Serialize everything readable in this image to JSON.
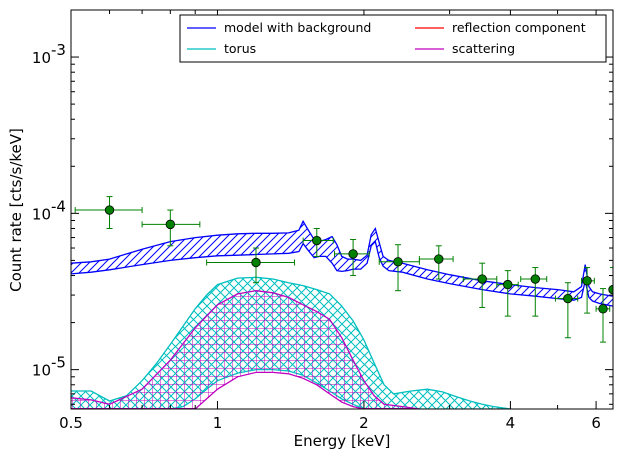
{
  "chart_data": {
    "type": "scatter",
    "xlabel": "Energy [keV]",
    "ylabel": "Count rate [cts/s/keV]",
    "xscale": "log",
    "yscale": "log",
    "xlim": [
      0.5,
      6.5
    ],
    "ylim": [
      5.6e-06,
      0.002
    ],
    "x_ticks": [
      {
        "value": 0.5,
        "label": "0.5"
      },
      {
        "value": 1,
        "label": "1"
      },
      {
        "value": 2,
        "label": "2"
      },
      {
        "value": 4,
        "label": "4"
      },
      {
        "value": 6,
        "label": "6"
      }
    ],
    "y_ticks": [
      {
        "value": 1e-05,
        "base": "10",
        "exp": "-5"
      },
      {
        "value": 0.0001,
        "base": "10",
        "exp": "-4"
      },
      {
        "value": 0.001,
        "base": "10",
        "exp": "-3"
      }
    ],
    "legend": {
      "placement": "top-right",
      "entries": [
        {
          "label": "model with background",
          "color": "#0000ff"
        },
        {
          "label": "reflection component",
          "color": "#ff0000"
        },
        {
          "label": "torus",
          "color": "#00bfbf"
        },
        {
          "label": "scattering",
          "color": "#bf00bf"
        }
      ]
    },
    "colors": {
      "model": "#0000ff",
      "reflection": "#ff0000",
      "torus": "#00bfbf",
      "scattering": "#bf00bf",
      "data": "#008000"
    },
    "data_points": [
      {
        "x": 0.6,
        "y": 0.000105,
        "xlo": 0.51,
        "xhi": 0.7,
        "ylo": 8e-05,
        "yhi": 0.000128
      },
      {
        "x": 0.8,
        "y": 8.5e-05,
        "xlo": 0.7,
        "xhi": 0.92,
        "ylo": 6.2e-05,
        "yhi": 0.000105
      },
      {
        "x": 1.2,
        "y": 4.85e-05,
        "xlo": 0.95,
        "xhi": 1.44,
        "ylo": 3.6e-05,
        "yhi": 6e-05
      },
      {
        "x": 1.6,
        "y": 6.7e-05,
        "xlo": 1.5,
        "xhi": 1.73,
        "ylo": 5.3e-05,
        "yhi": 8e-05
      },
      {
        "x": 1.9,
        "y": 5.5e-05,
        "xlo": 1.74,
        "xhi": 2.05,
        "ylo": 4e-05,
        "yhi": 6.8e-05
      },
      {
        "x": 2.35,
        "y": 4.9e-05,
        "xlo": 2.15,
        "xhi": 2.6,
        "ylo": 3.2e-05,
        "yhi": 6.3e-05
      },
      {
        "x": 2.85,
        "y": 5.1e-05,
        "xlo": 2.6,
        "xhi": 3.05,
        "ylo": 3.8e-05,
        "yhi": 6.2e-05
      },
      {
        "x": 3.5,
        "y": 3.8e-05,
        "xlo": 3.2,
        "xhi": 3.75,
        "ylo": 2.5e-05,
        "yhi": 4.8e-05
      },
      {
        "x": 3.95,
        "y": 3.5e-05,
        "xlo": 3.75,
        "xhi": 4.15,
        "ylo": 2.2e-05,
        "yhi": 4.3e-05
      },
      {
        "x": 4.5,
        "y": 3.8e-05,
        "xlo": 4.2,
        "xhi": 4.75,
        "ylo": 2.2e-05,
        "yhi": 4.5e-05
      },
      {
        "x": 5.25,
        "y": 2.85e-05,
        "xlo": 4.95,
        "xhi": 5.5,
        "ylo": 1.6e-05,
        "yhi": 3.6e-05
      },
      {
        "x": 5.75,
        "y": 3.7e-05,
        "xlo": 5.6,
        "xhi": 5.95,
        "ylo": 2.3e-05,
        "yhi": 4.5e-05
      },
      {
        "x": 6.2,
        "y": 2.45e-05,
        "xlo": 6.0,
        "xhi": 6.4,
        "ylo": 1.5e-05,
        "yhi": 3.3e-05
      },
      {
        "x": 6.5,
        "y": 3.25e-05,
        "xlo": 6.4,
        "xhi": 6.5,
        "ylo": 5.6e-06,
        "yhi": 4.5e-05
      }
    ],
    "series": [
      {
        "name": "model with background",
        "color": "#0000ff",
        "hatch": "diagonal",
        "x": [
          0.5,
          0.55,
          0.6,
          0.7,
          0.8,
          0.9,
          1.0,
          1.1,
          1.2,
          1.3,
          1.4,
          1.47,
          1.5,
          1.53,
          1.58,
          1.62,
          1.67,
          1.72,
          1.76,
          1.8,
          1.85,
          1.9,
          1.97,
          2.03,
          2.07,
          2.11,
          2.15,
          2.19,
          2.25,
          2.4,
          2.7,
          3.0,
          3.5,
          4.0,
          4.5,
          5.0,
          5.4,
          5.6,
          5.7,
          5.8,
          5.9,
          6.1,
          6.3,
          6.5
        ],
        "lower": [
          4.1e-05,
          4.2e-05,
          4.35e-05,
          4.7e-05,
          5e-05,
          5.2e-05,
          5.35e-05,
          5.4e-05,
          5.45e-05,
          5.5e-05,
          5.55e-05,
          5.7e-05,
          6.4e-05,
          5.9e-05,
          5.2e-05,
          5.3e-05,
          5.3e-05,
          4.8e-05,
          4.3e-05,
          4.25e-05,
          4.3e-05,
          4.4e-05,
          4.4e-05,
          4.8e-05,
          6.2e-05,
          6.6e-05,
          5.2e-05,
          4.6e-05,
          4.3e-05,
          4.2e-05,
          3.8e-05,
          3.55e-05,
          3.25e-05,
          3.05e-05,
          2.95e-05,
          2.85e-05,
          2.78e-05,
          2.9e-05,
          3.7e-05,
          2.9e-05,
          2.75e-05,
          2.65e-05,
          2.6e-05,
          2.55e-05
        ],
        "upper": [
          4.8e-05,
          4.9e-05,
          5.1e-05,
          5.9e-05,
          6.6e-05,
          7e-05,
          7.25e-05,
          7.4e-05,
          7.45e-05,
          7.45e-05,
          7.5e-05,
          7.8e-05,
          8.9e-05,
          8e-05,
          6.8e-05,
          6.6e-05,
          6.8e-05,
          7.1e-05,
          6.3e-05,
          5.3e-05,
          5.1e-05,
          5.1e-05,
          5e-05,
          5.4e-05,
          7.3e-05,
          8e-05,
          6.5e-05,
          5.3e-05,
          5e-05,
          4.8e-05,
          4.35e-05,
          4.05e-05,
          3.7e-05,
          3.5e-05,
          3.35e-05,
          3.25e-05,
          3.15e-05,
          3.4e-05,
          4.7e-05,
          3.4e-05,
          3.15e-05,
          3.05e-05,
          3e-05,
          2.95e-05
        ]
      },
      {
        "name": "torus",
        "color": "#00bfbf",
        "hatch": "cross",
        "x": [
          0.5,
          0.55,
          0.6,
          0.65,
          0.7,
          0.75,
          0.8,
          0.85,
          0.9,
          0.95,
          1.0,
          1.1,
          1.2,
          1.3,
          1.4,
          1.5,
          1.6,
          1.7,
          1.8,
          1.9,
          2.0,
          2.1,
          2.2,
          2.3,
          2.5,
          2.7,
          2.9,
          3.1,
          3.3,
          3.5,
          3.7,
          4.0
        ],
        "lower": [
          5.6e-06,
          5.6e-06,
          5.6e-06,
          5.6e-06,
          5.6e-06,
          5.6e-06,
          5.6e-06,
          5.8e-06,
          6.5e-06,
          7.5e-06,
          8.5e-06,
          9.5e-06,
          1e-05,
          1e-05,
          9.8e-06,
          9.2e-06,
          8.2e-06,
          7.3e-06,
          6.5e-06,
          6e-06,
          5.6e-06,
          5.6e-06,
          5.6e-06,
          5.6e-06,
          5.6e-06,
          5.6e-06,
          5.6e-06,
          5.6e-06,
          5.6e-06,
          5.6e-06,
          5.6e-06,
          5.6e-06
        ],
        "upper": [
          7.3e-06,
          7.3e-06,
          6.3e-06,
          6.8e-06,
          8.5e-06,
          1.1e-05,
          1.45e-05,
          1.9e-05,
          2.45e-05,
          3e-05,
          3.5e-05,
          3.85e-05,
          3.9e-05,
          3.8e-05,
          3.6e-05,
          3.45e-05,
          3.25e-05,
          3.05e-05,
          2.55e-05,
          2.05e-05,
          1.55e-05,
          1.1e-05,
          8e-06,
          7e-06,
          7.3e-06,
          7.5e-06,
          7.2e-06,
          6.7e-06,
          6.3e-06,
          6e-06,
          5.8e-06,
          5.6e-06
        ]
      },
      {
        "name": "scattering",
        "color": "#bf00bf",
        "hatch": "grid",
        "x": [
          0.5,
          0.55,
          0.6,
          0.7,
          0.8,
          0.9,
          1.0,
          1.1,
          1.2,
          1.3,
          1.4,
          1.5,
          1.6,
          1.7,
          1.8,
          1.9,
          2.0,
          2.1,
          2.2,
          2.4,
          2.6
        ],
        "lower": [
          5.6e-06,
          5.6e-06,
          5.6e-06,
          5.6e-06,
          5.6e-06,
          5.6e-06,
          7.5e-06,
          9e-06,
          9.6e-06,
          9.6e-06,
          9.4e-06,
          8.8e-06,
          8e-06,
          7e-06,
          6.2e-06,
          5.8e-06,
          5.6e-06,
          5.6e-06,
          5.6e-06,
          5.6e-06,
          5.6e-06
        ],
        "upper": [
          6.6e-06,
          6.4e-06,
          6e-06,
          7.5e-06,
          1.15e-05,
          1.85e-05,
          2.6e-05,
          3.05e-05,
          3.2e-05,
          3.1e-05,
          2.9e-05,
          2.6e-05,
          2.35e-05,
          2.1e-05,
          1.6e-05,
          1.15e-05,
          8.5e-06,
          6.8e-06,
          6e-06,
          5.8e-06,
          5.6e-06
        ]
      },
      {
        "name": "reflection component",
        "color": "#ff0000",
        "x": [],
        "values": []
      }
    ]
  }
}
